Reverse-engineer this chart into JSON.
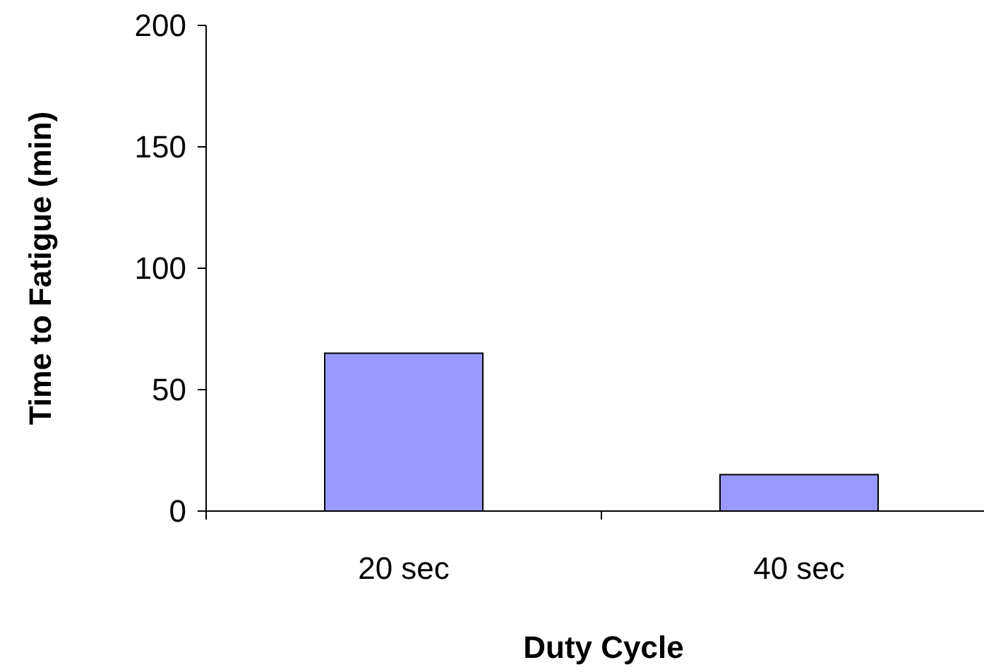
{
  "chart_data": {
    "type": "bar",
    "xlabel": "Duty Cycle",
    "ylabel": "Time to Fatigue (min)",
    "categories": [
      "20 sec",
      "40 sec"
    ],
    "values": [
      65,
      15
    ],
    "color": "#9999ff",
    "ylim": [
      0,
      200
    ],
    "yticks": [
      0,
      50,
      100,
      150,
      200
    ],
    "grid": false
  }
}
